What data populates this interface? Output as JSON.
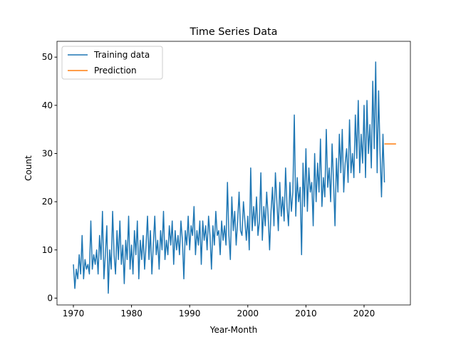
{
  "chart_data": {
    "type": "line",
    "title": "Time Series Data",
    "xlabel": "Year-Month",
    "ylabel": "Count",
    "xlim": [
      1967.18,
      2027.97
    ],
    "ylim": [
      -1.42,
      53.28
    ],
    "xticks": [
      1970,
      1980,
      1990,
      2000,
      2010,
      2020
    ],
    "yticks": [
      0,
      10,
      20,
      30,
      40,
      50
    ],
    "legend": "upper left",
    "grid": false,
    "series": [
      {
        "name": "Training data",
        "color": "#1f77b4",
        "x": [
          1970,
          1970.25,
          1970.5,
          1970.75,
          1971,
          1971.25,
          1971.5,
          1971.75,
          1972,
          1972.25,
          1972.5,
          1972.75,
          1973,
          1973.25,
          1973.5,
          1973.75,
          1974,
          1974.25,
          1974.5,
          1974.75,
          1975,
          1975.25,
          1975.5,
          1975.75,
          1976,
          1976.25,
          1976.5,
          1976.75,
          1977,
          1977.25,
          1977.5,
          1977.75,
          1978,
          1978.25,
          1978.5,
          1978.75,
          1979,
          1979.25,
          1979.5,
          1979.75,
          1980,
          1980.25,
          1980.5,
          1980.75,
          1981,
          1981.25,
          1981.5,
          1981.75,
          1982,
          1982.25,
          1982.5,
          1982.75,
          1983,
          1983.25,
          1983.5,
          1983.75,
          1984,
          1984.25,
          1984.5,
          1984.75,
          1985,
          1985.25,
          1985.5,
          1985.75,
          1986,
          1986.25,
          1986.5,
          1986.75,
          1987,
          1987.25,
          1987.5,
          1987.75,
          1988,
          1988.25,
          1988.5,
          1988.75,
          1989,
          1989.25,
          1989.5,
          1989.75,
          1990,
          1990.25,
          1990.5,
          1990.75,
          1991,
          1991.25,
          1991.5,
          1991.75,
          1992,
          1992.25,
          1992.5,
          1992.75,
          1993,
          1993.25,
          1993.5,
          1993.75,
          1994,
          1994.25,
          1994.5,
          1994.75,
          1995,
          1995.25,
          1995.5,
          1995.75,
          1996,
          1996.25,
          1996.5,
          1996.75,
          1997,
          1997.25,
          1997.5,
          1997.75,
          1998,
          1998.25,
          1998.5,
          1998.75,
          1999,
          1999.25,
          1999.5,
          1999.75,
          2000,
          2000.25,
          2000.5,
          2000.75,
          2001,
          2001.25,
          2001.5,
          2001.75,
          2002,
          2002.25,
          2002.5,
          2002.75,
          2003,
          2003.25,
          2003.5,
          2003.75,
          2004,
          2004.25,
          2004.5,
          2004.75,
          2005,
          2005.25,
          2005.5,
          2005.75,
          2006,
          2006.25,
          2006.5,
          2006.75,
          2007,
          2007.25,
          2007.5,
          2007.75,
          2008,
          2008.25,
          2008.5,
          2008.75,
          2009,
          2009.25,
          2009.5,
          2009.75,
          2010,
          2010.25,
          2010.5,
          2010.75,
          2011,
          2011.25,
          2011.5,
          2011.75,
          2012,
          2012.25,
          2012.5,
          2012.75,
          2013,
          2013.25,
          2013.5,
          2013.75,
          2014,
          2014.25,
          2014.5,
          2014.75,
          2015,
          2015.25,
          2015.5,
          2015.75,
          2016,
          2016.25,
          2016.5,
          2016.75,
          2017,
          2017.25,
          2017.5,
          2017.75,
          2018,
          2018.25,
          2018.5,
          2018.75,
          2019,
          2019.25,
          2019.5,
          2019.75,
          2020,
          2020.25,
          2020.5,
          2020.75,
          2021,
          2021.25,
          2021.5,
          2021.75,
          2022,
          2022.25,
          2022.5,
          2022.75,
          2023,
          2023.25,
          2023.5
        ],
        "values": [
          7,
          2,
          6,
          4,
          9,
          5,
          13,
          4,
          8,
          6,
          7,
          5,
          16,
          6,
          9,
          7,
          10,
          5,
          13,
          8,
          18,
          4,
          9,
          15,
          1,
          10,
          6,
          18,
          9,
          5,
          14,
          8,
          16,
          7,
          11,
          3,
          12,
          8,
          17,
          6,
          11,
          5,
          14,
          9,
          16,
          4,
          12,
          8,
          13,
          6,
          11,
          17,
          8,
          14,
          5,
          11,
          17,
          9,
          12,
          6,
          14,
          10,
          18,
          8,
          12,
          9,
          15,
          11,
          16,
          7,
          14,
          10,
          13,
          9,
          16,
          12,
          4,
          14,
          11,
          17,
          10,
          15,
          13,
          19,
          9,
          14,
          11,
          16,
          7,
          16,
          12,
          15,
          10,
          17,
          13,
          6,
          15,
          11,
          18,
          13,
          14,
          9,
          16,
          12,
          15,
          11,
          24,
          13,
          8,
          21,
          14,
          18,
          11,
          16,
          22,
          14,
          13,
          20,
          16,
          12,
          17,
          10,
          27,
          14,
          19,
          15,
          21,
          13,
          16,
          26,
          12,
          19,
          15,
          22,
          17,
          10,
          18,
          23,
          15,
          26,
          20,
          14,
          24,
          17,
          21,
          16,
          27,
          19,
          15,
          24,
          18,
          22,
          38,
          17,
          25,
          20,
          23,
          9,
          28,
          19,
          31,
          18,
          27,
          22,
          24,
          15,
          30,
          20,
          28,
          22,
          33,
          19,
          25,
          21,
          35,
          23,
          27,
          20,
          32,
          24,
          15,
          29,
          22,
          34,
          26,
          35,
          22,
          28,
          31,
          24,
          37,
          26,
          30,
          25,
          38,
          29,
          41,
          26,
          34,
          28,
          40,
          25,
          41,
          30,
          36,
          27,
          45,
          31,
          49,
          26,
          43,
          30,
          21,
          34,
          24
        ]
      },
      {
        "name": "Prediction",
        "color": "#ff7f0e",
        "x": [
          2023.5,
          2025.5
        ],
        "values": [
          32,
          32
        ]
      }
    ]
  }
}
